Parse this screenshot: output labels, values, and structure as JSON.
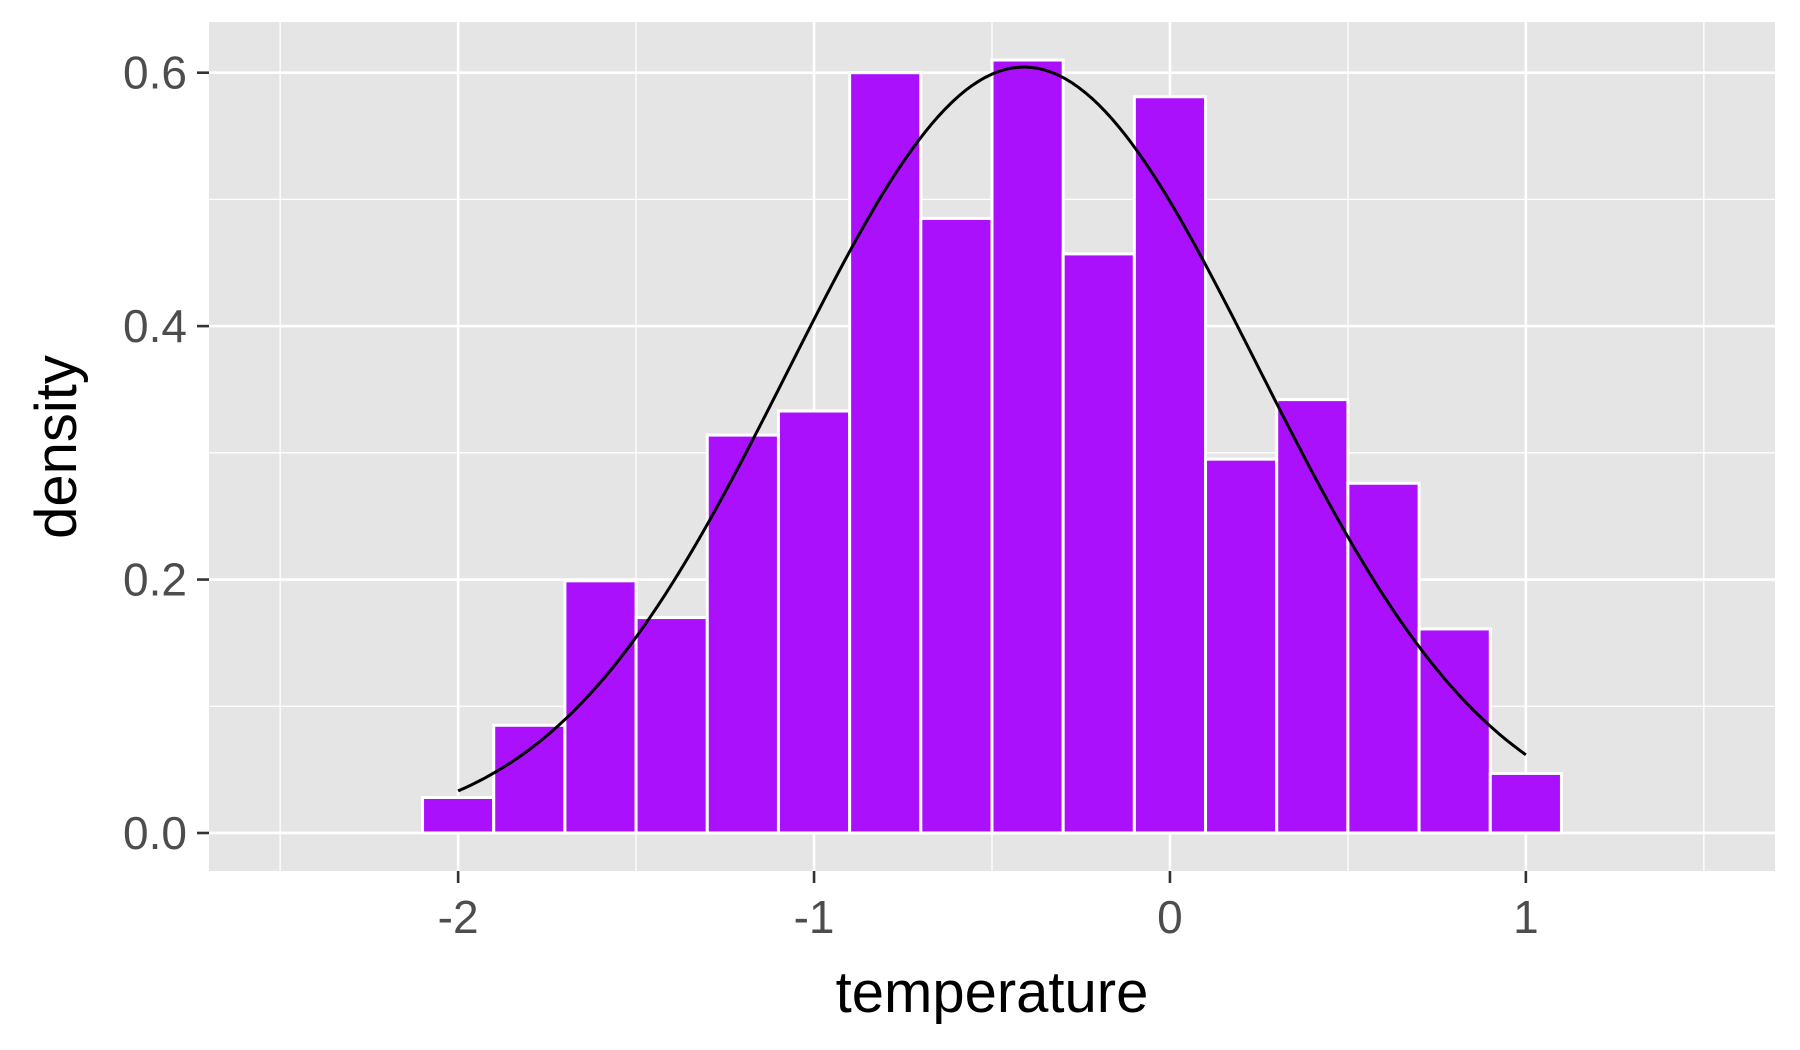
{
  "chart_data": {
    "type": "bar",
    "xlabel": "temperature",
    "ylabel": "density",
    "xlim": [
      -2.7,
      1.7
    ],
    "ylim": [
      -0.03,
      0.64
    ],
    "x_ticks": [
      -2,
      -1,
      0,
      1
    ],
    "x_tick_labels": [
      "-2",
      "-1",
      "0",
      "1"
    ],
    "y_ticks": [
      0.0,
      0.2,
      0.4,
      0.6
    ],
    "y_tick_labels": [
      "0.0",
      "0.2",
      "0.4",
      "0.6"
    ],
    "grid": true,
    "bin_width": 0.2,
    "bins": [
      {
        "x": -2.0,
        "density": 0.028
      },
      {
        "x": -1.8,
        "density": 0.085
      },
      {
        "x": -1.6,
        "density": 0.199
      },
      {
        "x": -1.4,
        "density": 0.17
      },
      {
        "x": -1.2,
        "density": 0.314
      },
      {
        "x": -1.0,
        "density": 0.333
      },
      {
        "x": -0.8,
        "density": 0.6
      },
      {
        "x": -0.6,
        "density": 0.485
      },
      {
        "x": -0.4,
        "density": 0.61
      },
      {
        "x": -0.2,
        "density": 0.457
      },
      {
        "x": 0.0,
        "density": 0.581
      },
      {
        "x": 0.2,
        "density": 0.295
      },
      {
        "x": 0.4,
        "density": 0.342
      },
      {
        "x": 0.6,
        "density": 0.276
      },
      {
        "x": 0.8,
        "density": 0.161
      },
      {
        "x": 1.0,
        "density": 0.047
      }
    ],
    "density_curve": {
      "type": "normal",
      "mean": -0.41,
      "sd": 0.66,
      "x_range": [
        -2.0,
        1.0
      ]
    },
    "colors": {
      "bar_fill": "#aa10fc",
      "bar_outline": "#ffffff",
      "curve": "#000000",
      "panel_background": "#e5e5e5",
      "grid": "#ffffff"
    }
  }
}
